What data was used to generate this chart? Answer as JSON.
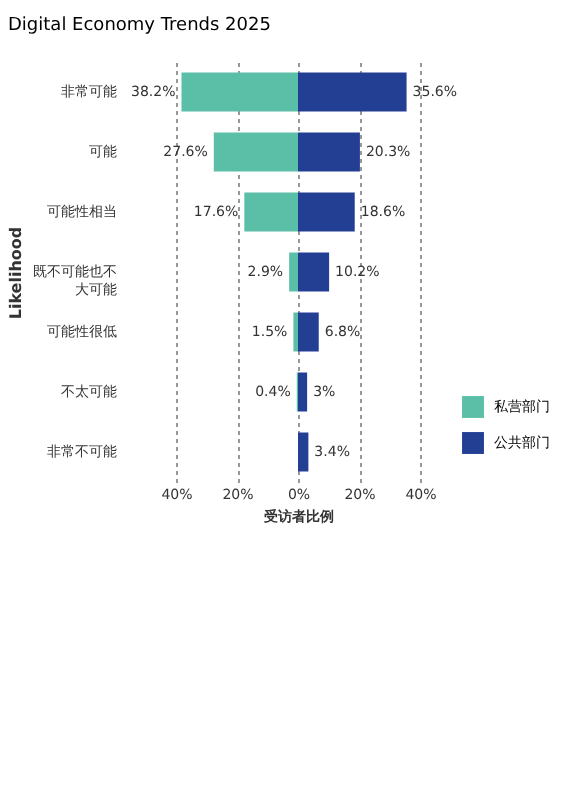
{
  "chart_data": {
    "type": "bar",
    "orientation": "horizontal",
    "title": "Digital Economy Trends 2025",
    "xlabel": "受访者比例",
    "ylabel": "Likelihood",
    "categories": [
      "非常可能",
      "可能",
      "可能性相当",
      "既不可能也不大可能",
      "可能性很低",
      "不太可能",
      "非常不可能"
    ],
    "series": [
      {
        "name": "私营部门",
        "color": "#5bbfa8",
        "base": [
          -38.2,
          -27.6,
          -17.6,
          -2.9,
          -1.5,
          -0.4,
          null
        ],
        "values": [
          38.2,
          27.6,
          17.6,
          2.9,
          1.5,
          0.4,
          null
        ],
        "value_labels": [
          "38.2%",
          "27.6%",
          "17.6%",
          "2.9%",
          "1.5%",
          "0.4%",
          null
        ]
      },
      {
        "name": "公共部门",
        "color": "#233f93",
        "values": [
          35.6,
          20.3,
          18.6,
          10.2,
          6.8,
          3,
          3.4
        ],
        "value_labels": [
          "35.6%",
          "20.3%",
          "18.6%",
          "10.2%",
          "6.8%",
          "3%",
          "3.4%"
        ]
      }
    ],
    "xlim": [
      -40,
      40
    ],
    "xticks": [
      {
        "value": -40,
        "label": "40%"
      },
      {
        "value": -20,
        "label": "20%"
      },
      {
        "value": 0,
        "label": "0%"
      },
      {
        "value": 20,
        "label": "20%"
      },
      {
        "value": 40,
        "label": "40%"
      }
    ],
    "grid": "x",
    "legend": "bottom right"
  }
}
